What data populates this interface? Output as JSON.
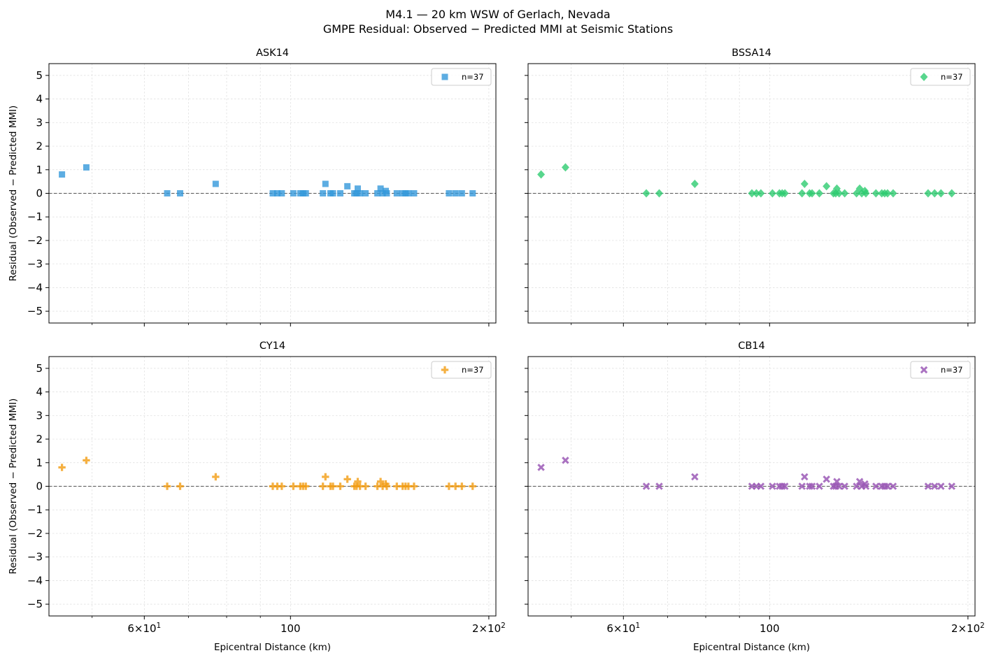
{
  "figure": {
    "title_line1": "M4.1 — 20 km WSW of Gerlach, Nevada",
    "title_line2": "GMPE Residual: Observed − Predicted MMI at Seismic Stations"
  },
  "axes": {
    "xlabel": "Epicentral Distance (km)",
    "ylabel": "Residual (Observed − Predicted MMI)",
    "xscale": "log",
    "xlim": [
      43,
      205
    ],
    "ylim": [
      -5.5,
      5.5
    ],
    "yticks": [
      5,
      4,
      3,
      2,
      1,
      0,
      -1,
      -2,
      -3,
      -4,
      -5
    ],
    "ytick_labels": [
      "5",
      "4",
      "3",
      "2",
      "1",
      "0",
      "−1",
      "−2",
      "−3",
      "−4",
      "−5"
    ],
    "xtick_labels": [
      {
        "value": 60,
        "mantissa": "6",
        "exponent": "1"
      },
      {
        "value": 100,
        "text": "100"
      },
      {
        "value": 200,
        "mantissa": "2",
        "exponent": "2"
      }
    ],
    "grid": true,
    "zero_line": true
  },
  "stations": {
    "x": [
      45,
      49,
      65,
      68,
      77,
      94,
      95.5,
      97,
      101,
      103.5,
      104.5,
      105.5,
      112,
      113,
      115,
      116,
      119,
      122,
      125,
      126,
      126.5,
      127.5,
      130,
      135.5,
      137,
      138,
      139.5,
      140,
      145,
      148,
      149.5,
      151,
      154,
      174,
      178,
      182,
      189
    ],
    "y": [
      0.8,
      1.1,
      0,
      0,
      0.4,
      0,
      0,
      0,
      0,
      0,
      0,
      0,
      0,
      0.4,
      0,
      0,
      0,
      0.3,
      0,
      0,
      0.2,
      0,
      0,
      0,
      0.2,
      0,
      0.1,
      0,
      0,
      0,
      0,
      0,
      0,
      0,
      0,
      0,
      0
    ]
  },
  "chart_data": [
    {
      "type": "scatter",
      "title": "ASK14",
      "series": [
        {
          "name": "n=37",
          "color": "#3498db",
          "marker": "square",
          "x_ref": "stations.x",
          "y_ref": "stations.y"
        }
      ]
    },
    {
      "type": "scatter",
      "title": "BSSA14",
      "series": [
        {
          "name": "n=37",
          "color": "#2ecc71",
          "marker": "diamond",
          "x_ref": "stations.x",
          "y_ref": "stations.y"
        }
      ]
    },
    {
      "type": "scatter",
      "title": "CY14",
      "series": [
        {
          "name": "n=37",
          "color": "#f39c12",
          "marker": "plus",
          "x_ref": "stations.x",
          "y_ref": "stations.y"
        }
      ]
    },
    {
      "type": "scatter",
      "title": "CB14",
      "series": [
        {
          "name": "n=37",
          "color": "#9b59b6",
          "marker": "x",
          "x_ref": "stations.x",
          "y_ref": "stations.y"
        }
      ]
    }
  ]
}
